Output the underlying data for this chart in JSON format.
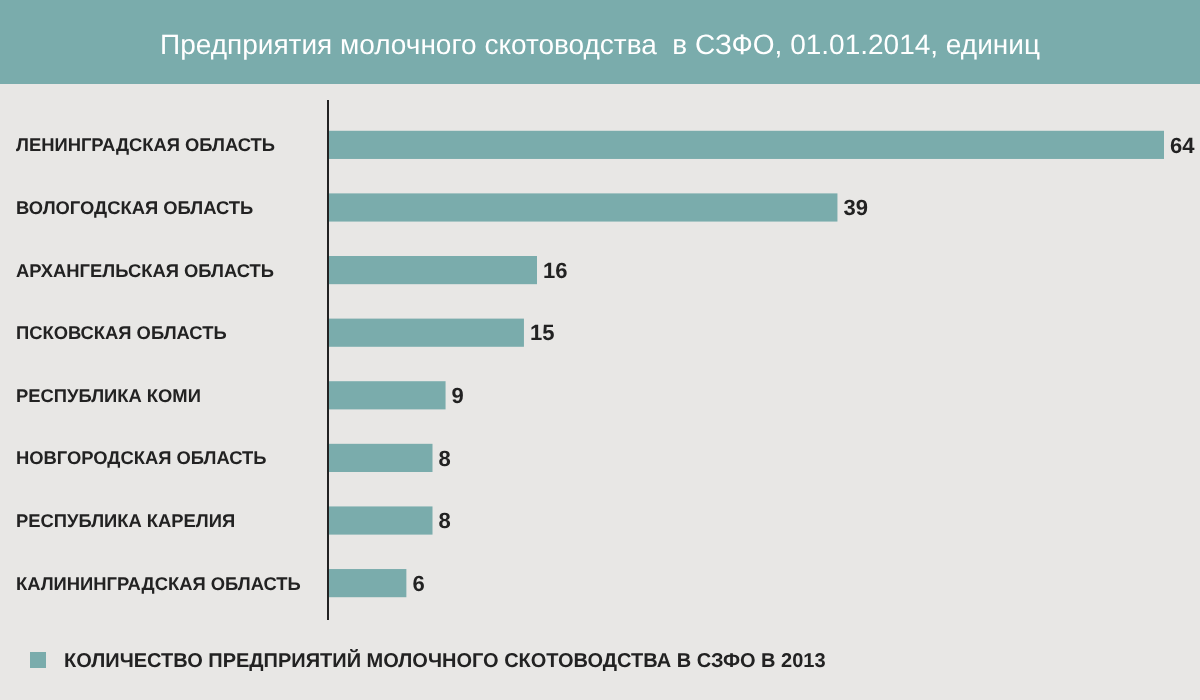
{
  "chart_data": {
    "type": "bar",
    "orientation": "horizontal",
    "title": "Предприятия молочного скотоводства  в СЗФО, 01.01.2014, единиц",
    "categories": [
      "ЛЕНИНГРАДСКАЯ ОБЛАСТЬ",
      "ВОЛОГОДСКАЯ ОБЛАСТЬ",
      "АРХАНГЕЛЬСКАЯ ОБЛАСТЬ",
      "ПСКОВСКАЯ ОБЛАСТЬ",
      "РЕСПУБЛИКА КОМИ",
      "НОВГОРОДСКАЯ ОБЛАСТЬ",
      "РЕСПУБЛИКА КАРЕЛИЯ",
      "КАЛИНИНГРАДСКАЯ ОБЛАСТЬ"
    ],
    "series": [
      {
        "name": "КОЛИЧЕСТВО ПРЕДПРИЯТИЙ МОЛОЧНОГО СКОТОВОДСТВА В СЗФО В 2013",
        "color": "#7aacac",
        "values": [
          64,
          39,
          16,
          15,
          9,
          8,
          8,
          6
        ]
      }
    ],
    "data_labels": true,
    "legend": "bottom left"
  }
}
